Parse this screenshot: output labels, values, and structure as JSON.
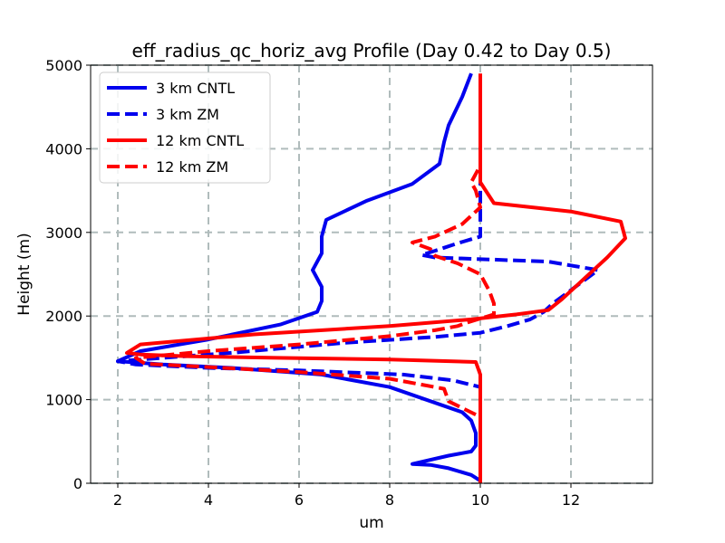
{
  "chart_data": {
    "type": "line",
    "title": "eff_radius_qc_horiz_avg Profile (Day 0.42 to Day 0.5)",
    "xlabel": "um",
    "ylabel": "Height (m)",
    "xlim": [
      1.4,
      13.8
    ],
    "ylim": [
      0,
      5000
    ],
    "xticks": [
      2,
      4,
      6,
      8,
      10,
      12
    ],
    "yticks": [
      0,
      1000,
      2000,
      3000,
      4000,
      5000
    ],
    "grid": true,
    "legend_position": "upper-left",
    "series": [
      {
        "name": "3 km CNTL",
        "color": "#0000ee",
        "dash": "solid",
        "x": [
          10.0,
          9.8,
          9.3,
          8.9,
          8.5,
          9.3,
          9.8,
          9.9,
          9.9,
          9.8,
          9.6,
          8.0,
          6.5,
          4.5,
          3.0,
          2.0,
          2.5,
          4.0,
          5.6,
          6.4,
          6.5,
          6.5,
          6.3,
          6.5,
          6.5,
          6.6,
          7.5,
          8.5,
          9.1,
          9.2,
          9.3,
          9.6,
          9.8
        ],
        "y": [
          30,
          100,
          180,
          220,
          230,
          330,
          380,
          450,
          600,
          750,
          850,
          1150,
          1300,
          1380,
          1420,
          1460,
          1580,
          1720,
          1900,
          2050,
          2180,
          2350,
          2550,
          2750,
          2950,
          3150,
          3380,
          3580,
          3820,
          4080,
          4280,
          4620,
          4900
        ]
      },
      {
        "name": "3 km ZM",
        "color": "#0000ee",
        "dash": "dashed",
        "x": [
          10.0,
          10.0,
          9.4,
          8.3,
          6.0,
          4.0,
          2.4,
          2.0,
          4.5,
          7.0,
          9.0,
          10.0,
          10.6,
          11.1,
          11.4,
          11.6,
          12.1,
          12.6,
          11.5,
          9.0,
          8.7,
          9.0,
          9.5,
          10.0,
          10.0,
          10.0,
          10.0,
          10.0
        ],
        "y": [
          0,
          1150,
          1230,
          1300,
          1350,
          1380,
          1420,
          1460,
          1560,
          1680,
          1750,
          1800,
          1880,
          1960,
          2050,
          2150,
          2350,
          2550,
          2650,
          2700,
          2730,
          2780,
          2870,
          2950,
          3150,
          3400,
          3700,
          4500
        ]
      },
      {
        "name": "12 km CNTL",
        "color": "#ff0000",
        "dash": "solid",
        "x": [
          10.0,
          10.0,
          10.0,
          10.0,
          9.9,
          8.0,
          5.5,
          3.5,
          2.5,
          2.2,
          2.5,
          5.0,
          8.0,
          9.8,
          10.8,
          11.5,
          11.8,
          12.2,
          12.8,
          13.2,
          13.1,
          12.0,
          10.3,
          10.0,
          10.0,
          10.0,
          10.0,
          10.0
        ],
        "y": [
          0,
          500,
          1000,
          1300,
          1450,
          1480,
          1500,
          1520,
          1540,
          1560,
          1660,
          1780,
          1880,
          1960,
          2020,
          2070,
          2200,
          2400,
          2700,
          2930,
          3130,
          3250,
          3350,
          3600,
          4000,
          4300,
          4600,
          4900
        ]
      },
      {
        "name": "12 km ZM",
        "color": "#ff0000",
        "dash": "dashed",
        "x": [
          9.9,
          9.6,
          9.3,
          9.2,
          8.0,
          6.0,
          4.0,
          2.6,
          2.4,
          4.0,
          6.0,
          8.0,
          9.0,
          9.5,
          9.7,
          10.3,
          10.3,
          10.2,
          10.0,
          9.5,
          9.0,
          8.9,
          8.5,
          9.0,
          9.6,
          10.0,
          9.9,
          9.8,
          10.0,
          10.0
        ],
        "y": [
          820,
          900,
          980,
          1130,
          1250,
          1330,
          1390,
          1430,
          1500,
          1580,
          1660,
          1760,
          1830,
          1880,
          1920,
          2020,
          2150,
          2300,
          2500,
          2630,
          2720,
          2800,
          2880,
          2950,
          3100,
          3300,
          3500,
          3600,
          3800,
          3900
        ]
      }
    ]
  }
}
